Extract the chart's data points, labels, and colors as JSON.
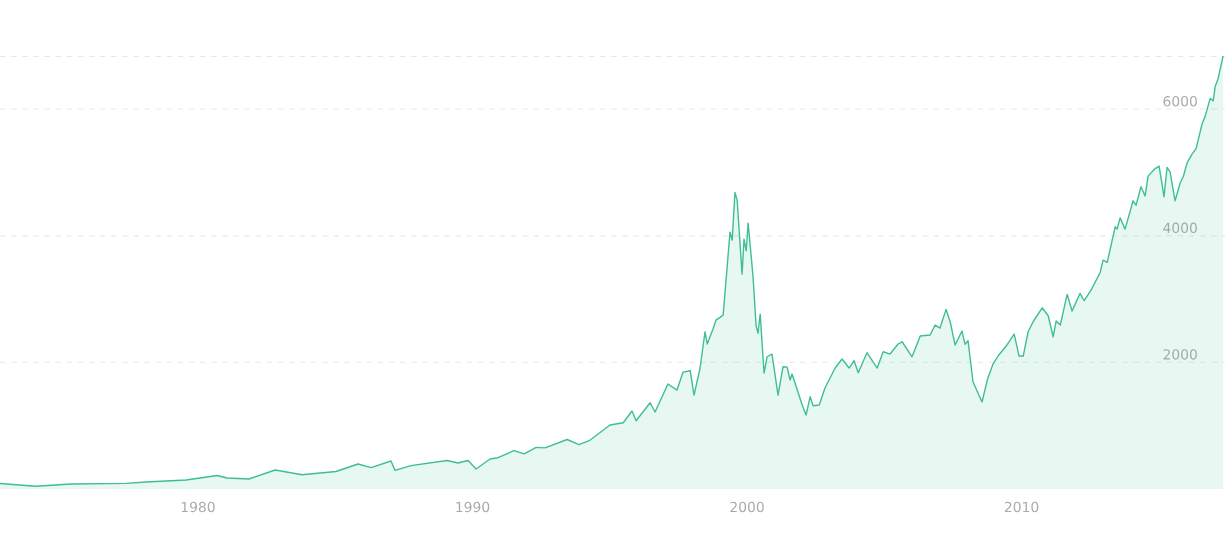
{
  "chart_data": {
    "type": "area",
    "x": [
      1972.79,
      1974.09,
      1975.38,
      1977.38,
      1978.11,
      1979.57,
      1980.7,
      1981.06,
      1981.86,
      1982.81,
      1983.79,
      1985.03,
      1985.83,
      1986.31,
      1987.03,
      1987.18,
      1987.76,
      1989.07,
      1989.47,
      1989.84,
      1990.13,
      1990.64,
      1990.93,
      1991.51,
      1991.88,
      1992.32,
      1992.64,
      1993.45,
      1993.88,
      1994.25,
      1995.01,
      1995.49,
      1995.81,
      1995.96,
      1996.47,
      1996.65,
      1997.12,
      1997.45,
      1997.67,
      1997.93,
      1998.07,
      1998.29,
      1998.47,
      1998.55,
      1998.76,
      1998.87,
      1999.13,
      1999.38,
      1999.46,
      1999.56,
      1999.64,
      1999.82,
      1999.89,
      1999.97,
      2000.04,
      2000.22,
      2000.33,
      2000.4,
      2000.48,
      2000.62,
      2000.73,
      2000.91,
      2001.13,
      2001.31,
      2001.46,
      2001.57,
      2001.64,
      2002.01,
      2002.15,
      2002.3,
      2002.41,
      2002.63,
      2002.84,
      2003.21,
      2003.46,
      2003.72,
      2003.9,
      2004.05,
      2004.37,
      2004.74,
      2004.96,
      2005.21,
      2005.5,
      2005.65,
      2006.01,
      2006.31,
      2006.67,
      2006.85,
      2007.03,
      2007.25,
      2007.4,
      2007.58,
      2007.83,
      2007.94,
      2008.05,
      2008.23,
      2008.56,
      2008.75,
      2008.96,
      2009.15,
      2009.44,
      2009.73,
      2009.91,
      2010.06,
      2010.24,
      2010.42,
      2010.75,
      2010.97,
      2011.15,
      2011.26,
      2011.41,
      2011.66,
      2011.84,
      2012.13,
      2012.28,
      2012.53,
      2012.86,
      2012.97,
      2013.12,
      2013.41,
      2013.48,
      2013.59,
      2013.77,
      2013.95,
      2014.06,
      2014.17,
      2014.35,
      2014.5,
      2014.61,
      2014.83,
      2015.01,
      2015.19,
      2015.3,
      2015.41,
      2015.59,
      2015.78,
      2015.89,
      2016.03,
      2016.21,
      2016.36,
      2016.58,
      2016.69,
      2016.87,
      2016.98,
      2017.05,
      2017.16,
      2017.34
    ],
    "series": [
      {
        "color": "#3dbf8f",
        "values": [
          88,
          44,
          79,
          88,
          110,
          142,
          213,
          174,
          158,
          300,
          226,
          276,
          395,
          338,
          442,
          294,
          370,
          450,
          410,
          450,
          316,
          474,
          494,
          606,
          556,
          657,
          650,
          782,
          700,
          763,
          1011,
          1047,
          1232,
          1078,
          1363,
          1216,
          1658,
          1563,
          1847,
          1868,
          1484,
          1911,
          2484,
          2290,
          2526,
          2668,
          2747,
          4058,
          3932,
          4685,
          4563,
          3395,
          3947,
          3763,
          4200,
          3352,
          2578,
          2463,
          2763,
          1832,
          2089,
          2132,
          1484,
          1931,
          1926,
          1721,
          1816,
          1326,
          1168,
          1458,
          1316,
          1326,
          1595,
          1911,
          2053,
          1911,
          2026,
          1837,
          2153,
          1911,
          2168,
          2132,
          2290,
          2326,
          2089,
          2416,
          2432,
          2590,
          2542,
          2837,
          2642,
          2274,
          2495,
          2285,
          2342,
          1694,
          1374,
          1721,
          1974,
          2105,
          2258,
          2447,
          2100,
          2100,
          2484,
          2642,
          2863,
          2737,
          2405,
          2653,
          2590,
          3074,
          2811,
          3090,
          2974,
          3142,
          3416,
          3616,
          3580,
          4142,
          4105,
          4284,
          4105,
          4379,
          4553,
          4484,
          4774,
          4627,
          4942,
          5048,
          5100,
          4616,
          5080,
          5011,
          4553,
          4837,
          4932,
          5153,
          5290,
          5380,
          5775,
          5890,
          6170,
          6132,
          6353,
          6485,
          6840
        ]
      }
    ],
    "xlim": [
      1972.79,
      2017.41
    ],
    "xticks": [
      1980,
      1990,
      2000,
      2010
    ],
    "ylim": [
      0,
      6840
    ],
    "yticks": [
      2000,
      4000,
      6000
    ],
    "ref_lines": [
      {
        "axis": "y",
        "value": 6840,
        "label": null,
        "color": "#c8ece0",
        "line_style": "dashed"
      }
    ],
    "grid": "y"
  }
}
